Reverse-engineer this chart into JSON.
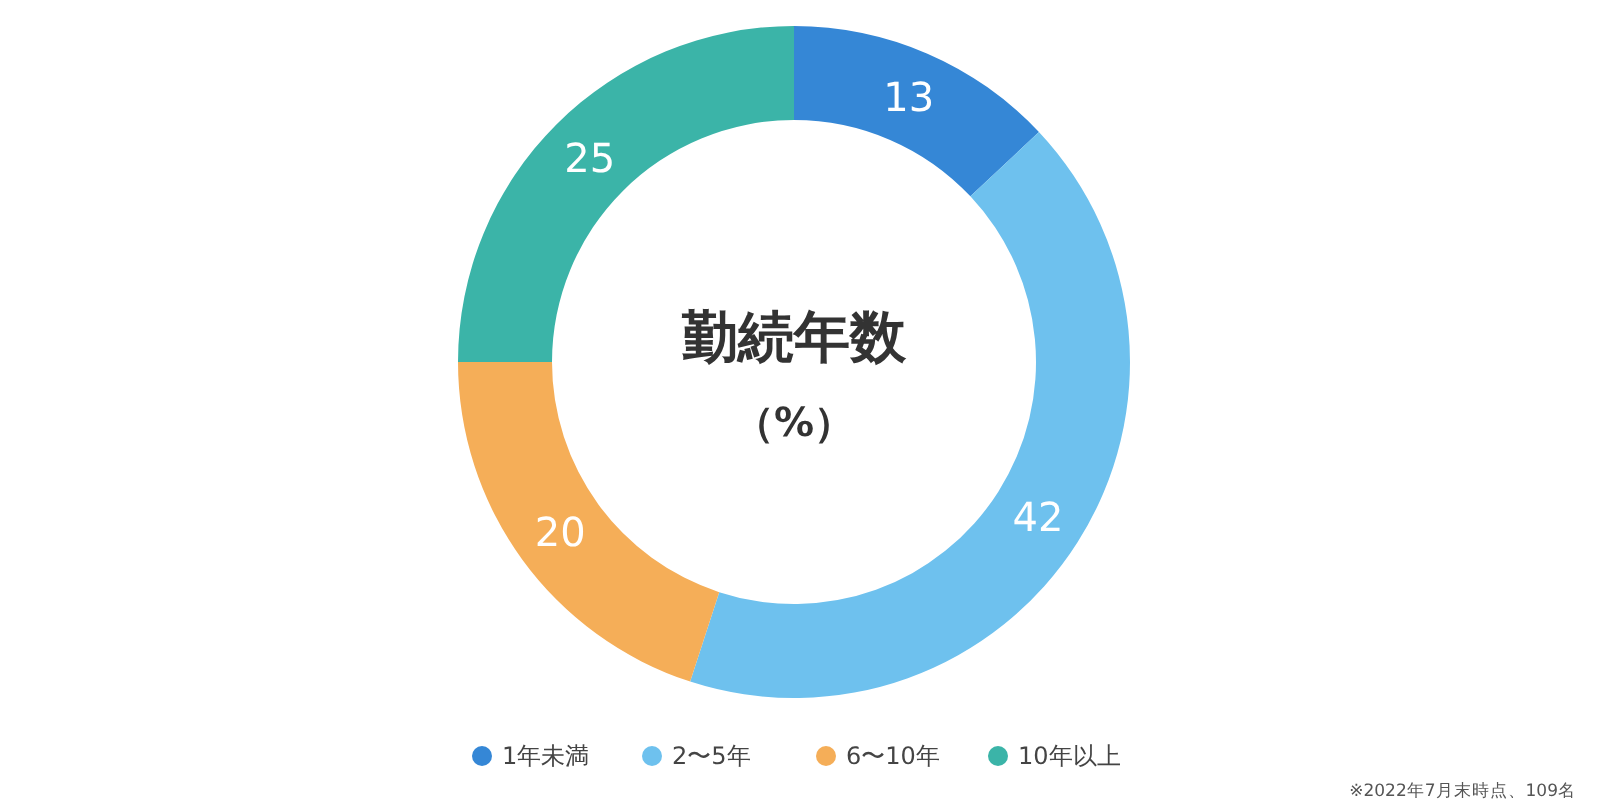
{
  "chart_data": {
    "type": "donut",
    "title": "勤続年数",
    "subtitle": "（%）",
    "categories": [
      "1年未満",
      "2〜5年",
      "6〜10年",
      "10年以上"
    ],
    "values": [
      13,
      42,
      20,
      25
    ],
    "colors": [
      "#3587d6",
      "#6ec1ee",
      "#f5ae58",
      "#3bb4a8"
    ],
    "data_labels": true,
    "legend": "bottom",
    "annotations": [
      "※2022年7月末時点、109名"
    ]
  }
}
